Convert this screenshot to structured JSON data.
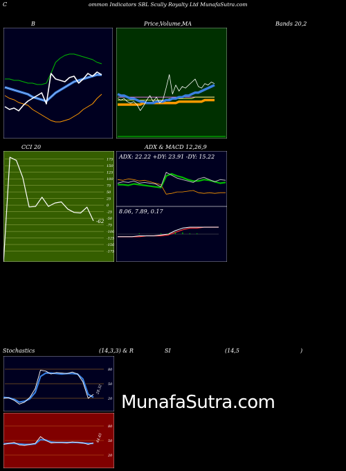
{
  "header": {
    "title_part1": "C",
    "title_part2": "ommon  Indicators SBL  Scully Royalty Ltd MunafaSutra.com"
  },
  "labels": {
    "bb": "B",
    "price_part1": "Price,",
    "price_part2": "Volume,",
    "price_part3": "MA",
    "bands": "Bands 20,2",
    "cci": "CCI 20",
    "adx_title": "ADX  & MACD 12,26,9",
    "adx_values": "ADX: 22.22  +DY: 23.91 -DY: 15.22",
    "macd_values": "8.06,  7.89,  0.17",
    "stoch_title": "Stochastics",
    "stoch_params": "(14,3,3) & R",
    "rsi_label": "SI",
    "rsi_params": "(14,5",
    "rsi_close": ")",
    "watermark": "MunafaSutra.com"
  },
  "colors": {
    "navy": "#000020",
    "green_panel": "#003000",
    "olive_panel": "#355e00",
    "red_panel": "#800000",
    "white": "#ffffff",
    "blue": "#3a7fe0",
    "green_line": "#00bb00",
    "orange": "#ff9900",
    "grid_olive": "#9ab050",
    "grid_orange": "#c08020"
  },
  "chart_data": [
    {
      "id": "bollinger",
      "type": "line",
      "title": "Bollinger Bands 20,2",
      "series": [
        {
          "values": [
            38,
            36,
            37,
            35,
            39,
            42,
            44,
            46,
            48,
            40,
            62,
            58,
            57,
            56,
            59,
            60,
            55,
            58,
            62,
            60,
            63,
            61
          ]
        },
        {
          "values": [
            52,
            51,
            50,
            49,
            48,
            47,
            45,
            44,
            43,
            42,
            45,
            48,
            50,
            52,
            54,
            56,
            57,
            58,
            59,
            60,
            61,
            61
          ]
        },
        {
          "values": [
            58,
            58,
            57,
            57,
            56,
            55,
            55,
            54,
            54,
            55,
            62,
            70,
            73,
            75,
            76,
            76,
            75,
            74,
            73,
            72,
            70,
            69
          ]
        },
        {
          "values": [
            46,
            44,
            43,
            41,
            40,
            39,
            36,
            34,
            32,
            30,
            28,
            27,
            27,
            28,
            29,
            31,
            33,
            36,
            38,
            40,
            44,
            47
          ]
        }
      ],
      "ylim": [
        20,
        90
      ]
    },
    {
      "id": "price_ma",
      "type": "line",
      "title": "Price, Volume, MA",
      "series": [
        {
          "values": [
            22,
            21,
            22,
            20,
            19,
            20,
            18,
            14,
            17,
            21,
            24,
            20,
            23,
            19,
            21,
            29,
            38,
            25,
            31,
            27,
            30,
            29,
            31,
            33,
            35,
            30,
            29,
            32,
            31,
            33,
            32
          ]
        },
        {
          "values": [
            25,
            24,
            24,
            23,
            22,
            22,
            21,
            20,
            20,
            19,
            19,
            19,
            20,
            20,
            20,
            21,
            21,
            22,
            22,
            23,
            23,
            24,
            24,
            25,
            26,
            26,
            27,
            28,
            29,
            30,
            31
          ]
        },
        {
          "values": [
            21,
            21,
            21,
            21,
            21,
            21,
            21,
            21,
            21,
            21,
            21,
            21,
            21,
            21,
            21,
            21,
            22,
            22,
            22,
            22,
            22,
            22,
            22,
            22,
            23,
            23,
            23,
            23,
            23,
            23,
            23
          ]
        },
        {
          "values": [
            23,
            23,
            23,
            23,
            23,
            23,
            23,
            23,
            23,
            23,
            23,
            23,
            23,
            23,
            23,
            23,
            23,
            23,
            23,
            23,
            23,
            23,
            23,
            23,
            23,
            23,
            23,
            23,
            23,
            23,
            23
          ]
        },
        {
          "values": [
            18,
            18,
            18,
            18,
            18,
            18,
            18,
            18,
            19,
            19,
            19,
            19,
            19,
            19,
            19,
            19,
            19,
            19,
            19,
            20,
            20,
            20,
            20,
            20,
            20,
            20,
            20,
            21,
            21,
            21,
            21
          ]
        }
      ],
      "ylim": [
        0,
        60
      ]
    },
    {
      "id": "cci",
      "type": "line",
      "title": "CCI 20",
      "series": [
        {
          "values": [
            -220,
            182,
            170,
            105,
            -7,
            -5,
            30,
            -5,
            8,
            12,
            -15,
            -28,
            -30,
            -8,
            -60
          ]
        }
      ],
      "ylim": [
        -200,
        190
      ],
      "yticks": [
        175,
        150,
        125,
        100,
        75,
        50,
        25,
        0,
        -25,
        -50,
        -75,
        -100,
        -125,
        -150,
        -175
      ],
      "last_label": "-62"
    },
    {
      "id": "adx",
      "type": "line",
      "title": "ADX & MACD 12,26,9",
      "series": [
        {
          "values": [
            30,
            32,
            31,
            33,
            30,
            31,
            30,
            29,
            25,
            45,
            41,
            37,
            35,
            33,
            31,
            36,
            38,
            35,
            32,
            35,
            34
          ]
        },
        {
          "values": [
            28,
            28,
            27,
            29,
            28,
            27,
            26,
            25,
            24,
            40,
            43,
            40,
            38,
            35,
            33,
            33,
            35,
            34,
            32,
            30,
            31
          ]
        },
        {
          "values": [
            35,
            34,
            36,
            35,
            33,
            34,
            32,
            30,
            28,
            15,
            16,
            18,
            18,
            19,
            20,
            17,
            16,
            17,
            16,
            17,
            17
          ]
        }
      ],
      "values_text": "ADX: 22.22  +DY: 23.91 -DY: 15.22"
    },
    {
      "id": "macd",
      "type": "line",
      "series": [
        {
          "values": [
            -3,
            -3,
            -3,
            -2,
            -2,
            -2,
            -1,
            0,
            4,
            7,
            8,
            8,
            8,
            8,
            8
          ]
        },
        {
          "values": [
            -3,
            -3,
            -3,
            -3,
            -2,
            -2,
            -2,
            -1,
            2,
            5,
            7,
            7,
            8,
            8,
            8
          ]
        }
      ],
      "values_text": "8.06, 7.89, 0.17"
    },
    {
      "id": "stochastics",
      "type": "line",
      "title": "Stochastics (14,3,3)",
      "yticks": [
        80,
        50,
        20
      ],
      "ylim": [
        0,
        100
      ],
      "series": [
        {
          "values": [
            20,
            21,
            16,
            8,
            12,
            22,
            40,
            78,
            76,
            70,
            73,
            72,
            71,
            74,
            70,
            54,
            20,
            28
          ]
        },
        {
          "values": [
            22,
            21,
            18,
            12,
            14,
            19,
            32,
            65,
            72,
            72,
            71,
            70,
            71,
            71,
            70,
            60,
            28,
            22
          ]
        }
      ],
      "last_label": "28.32"
    },
    {
      "id": "rsi",
      "type": "line",
      "title": "RSI (14,5)",
      "yticks": [
        80,
        50,
        20
      ],
      "ylim": [
        0,
        100
      ],
      "series": [
        {
          "values": [
            42,
            44,
            46,
            41,
            40,
            42,
            44,
            58,
            50,
            45,
            46,
            46,
            45,
            47,
            46,
            45,
            42,
            45
          ]
        },
        {
          "values": [
            43,
            44,
            44,
            43,
            42,
            42,
            43,
            52,
            51,
            47,
            46,
            46,
            46,
            46,
            46,
            45,
            44,
            44
          ]
        }
      ],
      "last_label": "44.45"
    }
  ]
}
